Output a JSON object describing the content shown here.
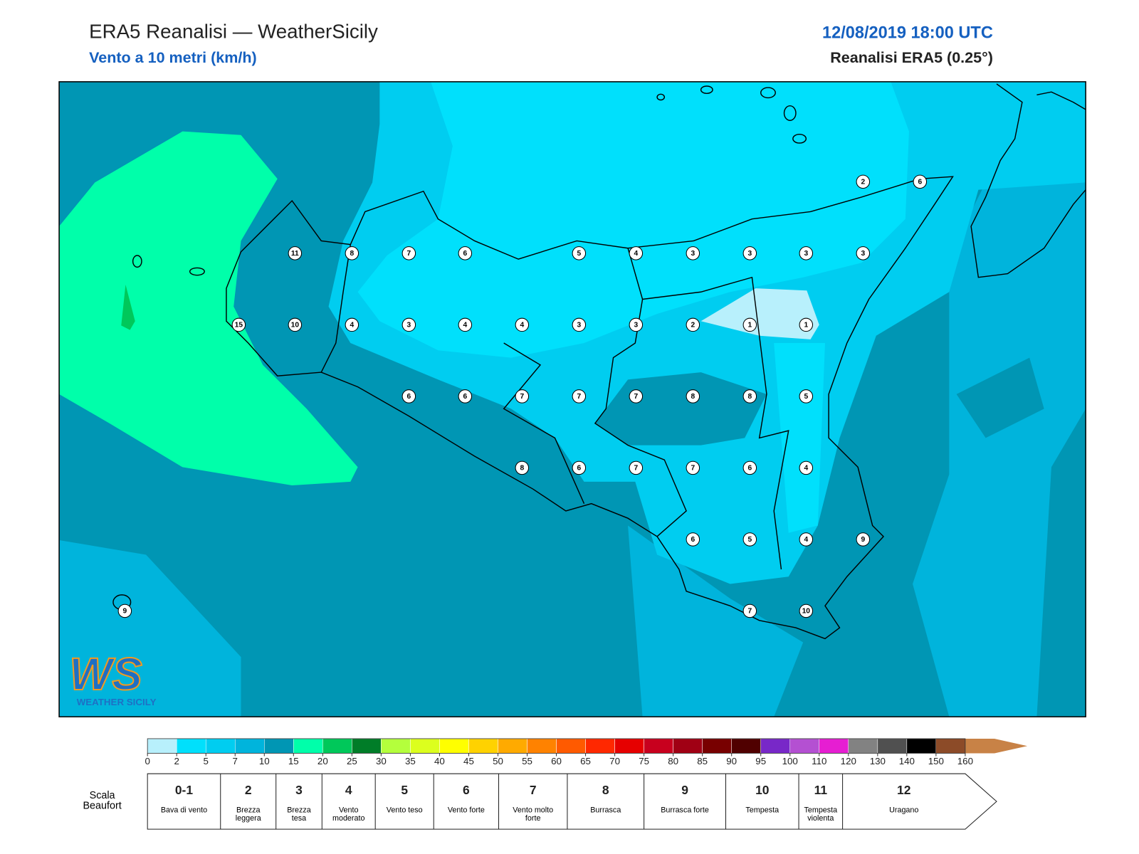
{
  "header": {
    "title": "ERA5 Reanalisi — WeatherSicily",
    "subtitle": "Vento a 10 metri (km/h)",
    "datetime": "12/08/2019 18:00 UTC",
    "source": "Reanalisi ERA5 (0.25°)"
  },
  "map": {
    "stations": [
      2,
      6,
      11,
      8,
      7,
      6,
      5,
      4,
      3,
      3,
      3,
      3,
      15,
      10,
      4,
      3,
      4,
      4,
      3,
      3,
      2,
      1,
      1,
      6,
      6,
      7,
      7,
      7,
      8,
      8,
      5,
      8,
      6,
      7,
      7,
      6,
      4,
      6,
      5,
      4,
      9,
      7,
      10,
      9
    ]
  },
  "colorbar": {
    "ticks": [
      0,
      2,
      5,
      7,
      10,
      15,
      20,
      25,
      30,
      35,
      40,
      45,
      50,
      55,
      60,
      65,
      70,
      75,
      80,
      85,
      90,
      95,
      100,
      110,
      120,
      130,
      140,
      150,
      160
    ],
    "colors": [
      "#b8f0fc",
      "#00e0fc",
      "#00cdf0",
      "#00b4dc",
      "#0096b4",
      "#00ffaa",
      "#00c85a",
      "#007d28",
      "#b4ff3c",
      "#dcff1e",
      "#ffff00",
      "#ffd200",
      "#ffaa00",
      "#ff8200",
      "#ff5a00",
      "#ff2800",
      "#e60000",
      "#c8001e",
      "#a00014",
      "#780000",
      "#500000",
      "#7828c8",
      "#b450d2",
      "#e61ed2",
      "#828282",
      "#505050",
      "#000000",
      "#8c4b28",
      "#c88246"
    ]
  },
  "beaufort": {
    "title": "Scala Beaufort",
    "classes": [
      {
        "force": "0-1",
        "label": "Bava di vento"
      },
      {
        "force": "2",
        "label": "Brezza leggera"
      },
      {
        "force": "3",
        "label": "Brezza tesa"
      },
      {
        "force": "4",
        "label": "Vento moderato"
      },
      {
        "force": "5",
        "label": "Vento teso"
      },
      {
        "force": "6",
        "label": "Vento forte"
      },
      {
        "force": "7",
        "label": "Vento molto forte"
      },
      {
        "force": "8",
        "label": "Burrasca"
      },
      {
        "force": "9",
        "label": "Burrasca forte"
      },
      {
        "force": "10",
        "label": "Tempesta"
      },
      {
        "force": "11",
        "label": "Tempesta violenta"
      },
      {
        "force": "12",
        "label": "Uragano"
      }
    ]
  },
  "logo": {
    "mark": "WS",
    "name": "WEATHER SICILY"
  }
}
